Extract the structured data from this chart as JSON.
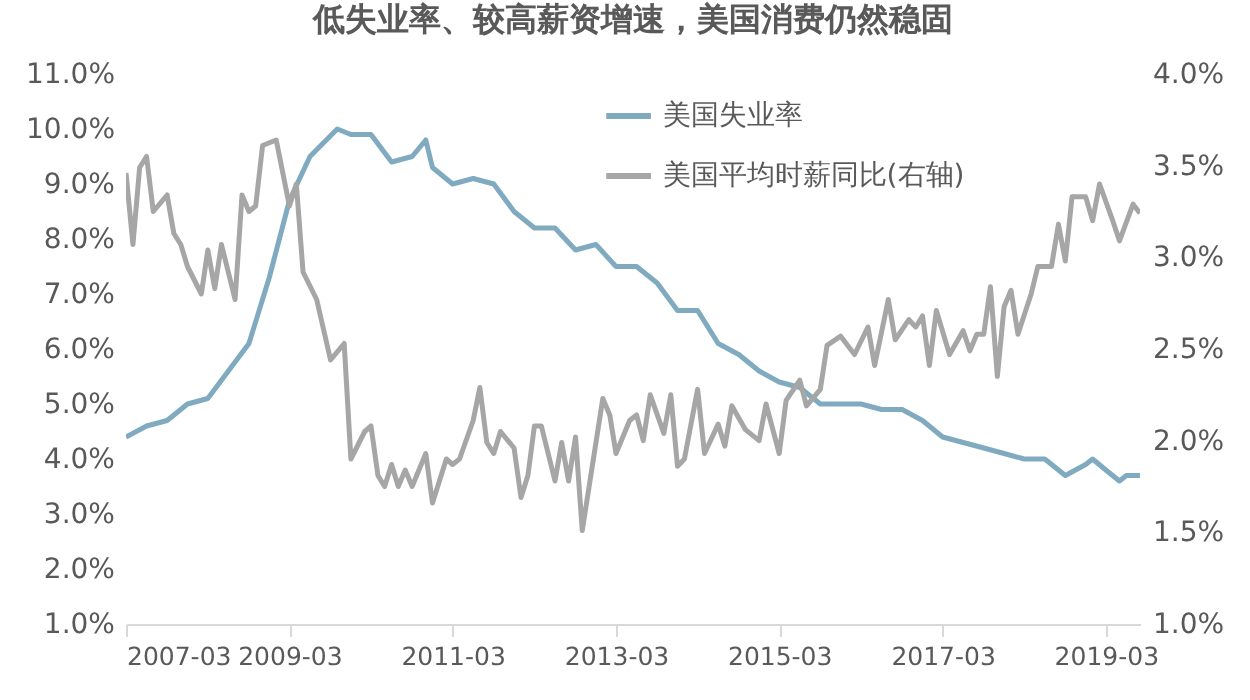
{
  "chart_data": {
    "type": "line",
    "title": "低失业率、较高薪资增速，美国消费仍然稳固",
    "xlim": [
      "2007-03",
      "2019-08"
    ],
    "xticks": [
      "2007-03",
      "2009-03",
      "2011-03",
      "2013-03",
      "2015-03",
      "2017-03",
      "2019-03"
    ],
    "ylim": [
      1,
      11
    ],
    "yticks": [
      {
        "value": 1,
        "label": "1.0%"
      },
      {
        "value": 2,
        "label": "2.0%"
      },
      {
        "value": 3,
        "label": "3.0%"
      },
      {
        "value": 4,
        "label": "4.0%"
      },
      {
        "value": 5,
        "label": "5.0%"
      },
      {
        "value": 6,
        "label": "6.0%"
      },
      {
        "value": 7,
        "label": "7.0%"
      },
      {
        "value": 8,
        "label": "8.0%"
      },
      {
        "value": 9,
        "label": "9.0%"
      },
      {
        "value": 10,
        "label": "10.0%"
      },
      {
        "value": 11,
        "label": "11.0%"
      }
    ],
    "y2lim": [
      1,
      4
    ],
    "y2ticks": [
      {
        "value": 1,
        "label": "1.0%"
      },
      {
        "value": 1.5,
        "label": "1.5%"
      },
      {
        "value": 2,
        "label": "2.0%"
      },
      {
        "value": 2.5,
        "label": "2.5%"
      },
      {
        "value": 3,
        "label": "3.0%"
      },
      {
        "value": 3.5,
        "label": "3.5%"
      },
      {
        "value": 4,
        "label": "4.0%"
      }
    ],
    "grid": false,
    "legend": "top right",
    "series": [
      {
        "name": "美国失业率",
        "color": "#7faabf",
        "x": [
          "2007-03",
          "2007-06",
          "2007-09",
          "2007-12",
          "2008-03",
          "2008-06",
          "2008-09",
          "2008-12",
          "2009-03",
          "2009-06",
          "2009-10",
          "2009-12",
          "2010-03",
          "2010-06",
          "2010-09",
          "2010-11",
          "2010-12",
          "2011-03",
          "2011-06",
          "2011-09",
          "2011-12",
          "2012-03",
          "2012-06",
          "2012-09",
          "2012-12",
          "2013-03",
          "2013-06",
          "2013-09",
          "2013-12",
          "2014-03",
          "2014-06",
          "2014-09",
          "2014-12",
          "2015-03",
          "2015-06",
          "2015-09",
          "2015-12",
          "2016-03",
          "2016-06",
          "2016-09",
          "2016-12",
          "2017-03",
          "2017-06",
          "2017-09",
          "2017-12",
          "2018-03",
          "2018-06",
          "2018-09",
          "2018-12",
          "2019-01",
          "2019-03",
          "2019-05",
          "2019-06",
          "2019-08"
        ],
        "values": [
          4.4,
          4.6,
          4.7,
          5.0,
          5.1,
          5.6,
          6.1,
          7.3,
          8.7,
          9.5,
          10.0,
          9.9,
          9.9,
          9.4,
          9.5,
          9.8,
          9.3,
          9.0,
          9.1,
          9.0,
          8.5,
          8.2,
          8.2,
          7.8,
          7.9,
          7.5,
          7.5,
          7.2,
          6.7,
          6.7,
          6.1,
          5.9,
          5.6,
          5.4,
          5.3,
          5.0,
          5.0,
          5.0,
          4.9,
          4.9,
          4.7,
          4.4,
          4.3,
          4.2,
          4.1,
          4.0,
          4.0,
          3.7,
          3.9,
          4.0,
          3.8,
          3.6,
          3.7,
          3.7
        ]
      },
      {
        "name": "美国平均时薪同比(右轴)",
        "color": "#a6a6a6",
        "axis": "y2",
        "x": [
          "2007-03",
          "2007-04",
          "2007-05",
          "2007-06",
          "2007-07",
          "2007-09",
          "2007-10",
          "2007-11",
          "2007-12",
          "2008-02",
          "2008-03",
          "2008-04",
          "2008-05",
          "2008-07",
          "2008-08",
          "2008-09",
          "2008-10",
          "2008-11",
          "2009-01",
          "2009-03",
          "2009-04",
          "2009-05",
          "2009-07",
          "2009-09",
          "2009-11",
          "2009-12",
          "2010-02",
          "2010-03",
          "2010-04",
          "2010-05",
          "2010-06",
          "2010-07",
          "2010-08",
          "2010-09",
          "2010-11",
          "2010-12",
          "2011-02",
          "2011-03",
          "2011-04",
          "2011-06",
          "2011-07",
          "2011-08",
          "2011-09",
          "2011-10",
          "2011-12",
          "2012-01",
          "2012-02",
          "2012-03",
          "2012-04",
          "2012-06",
          "2012-07",
          "2012-08",
          "2012-09",
          "2012-10",
          "2013-01",
          "2013-02",
          "2013-03",
          "2013-05",
          "2013-06",
          "2013-07",
          "2013-08",
          "2013-10",
          "2013-11",
          "2013-12",
          "2014-01",
          "2014-03",
          "2014-04",
          "2014-06",
          "2014-07",
          "2014-08",
          "2014-10",
          "2014-12",
          "2015-01",
          "2015-03",
          "2015-04",
          "2015-06",
          "2015-07",
          "2015-09",
          "2015-10",
          "2015-12",
          "2016-02",
          "2016-04",
          "2016-05",
          "2016-07",
          "2016-08",
          "2016-10",
          "2016-11",
          "2016-12",
          "2017-01",
          "2017-02",
          "2017-04",
          "2017-06",
          "2017-07",
          "2017-08",
          "2017-09",
          "2017-10",
          "2017-11",
          "2017-12",
          "2018-01",
          "2018-02",
          "2018-04",
          "2018-05",
          "2018-07",
          "2018-08",
          "2018-09",
          "2018-10",
          "2018-12",
          "2019-01",
          "2019-02",
          "2019-04",
          "2019-05",
          "2019-07",
          "2019-08"
        ],
        "values": [
          3.46,
          3.07,
          3.49,
          3.55,
          3.25,
          3.34,
          3.13,
          3.07,
          2.95,
          2.8,
          3.04,
          2.83,
          3.07,
          2.77,
          3.34,
          3.25,
          3.28,
          3.61,
          3.64,
          3.28,
          3.4,
          2.92,
          2.77,
          2.44,
          2.53,
          1.9,
          2.05,
          2.08,
          1.81,
          1.75,
          1.87,
          1.75,
          1.84,
          1.75,
          1.93,
          1.66,
          1.9,
          1.87,
          1.9,
          2.11,
          2.29,
          1.99,
          1.93,
          2.05,
          1.96,
          1.69,
          1.81,
          2.08,
          2.08,
          1.78,
          1.99,
          1.78,
          2.02,
          1.51,
          2.23,
          2.14,
          1.93,
          2.11,
          2.14,
          2.0,
          2.25,
          2.04,
          2.25,
          1.86,
          1.9,
          2.28,
          1.93,
          2.09,
          1.97,
          2.19,
          2.06,
          2.0,
          2.2,
          1.93,
          2.22,
          2.33,
          2.19,
          2.28,
          2.52,
          2.57,
          2.47,
          2.62,
          2.41,
          2.77,
          2.55,
          2.66,
          2.62,
          2.68,
          2.41,
          2.71,
          2.47,
          2.6,
          2.49,
          2.58,
          2.58,
          2.84,
          2.35,
          2.73,
          2.82,
          2.58,
          2.8,
          2.95,
          2.95,
          3.18,
          2.98,
          3.33,
          3.33,
          3.2,
          3.4,
          3.2,
          3.09,
          3.29,
          3.24
        ]
      }
    ]
  }
}
